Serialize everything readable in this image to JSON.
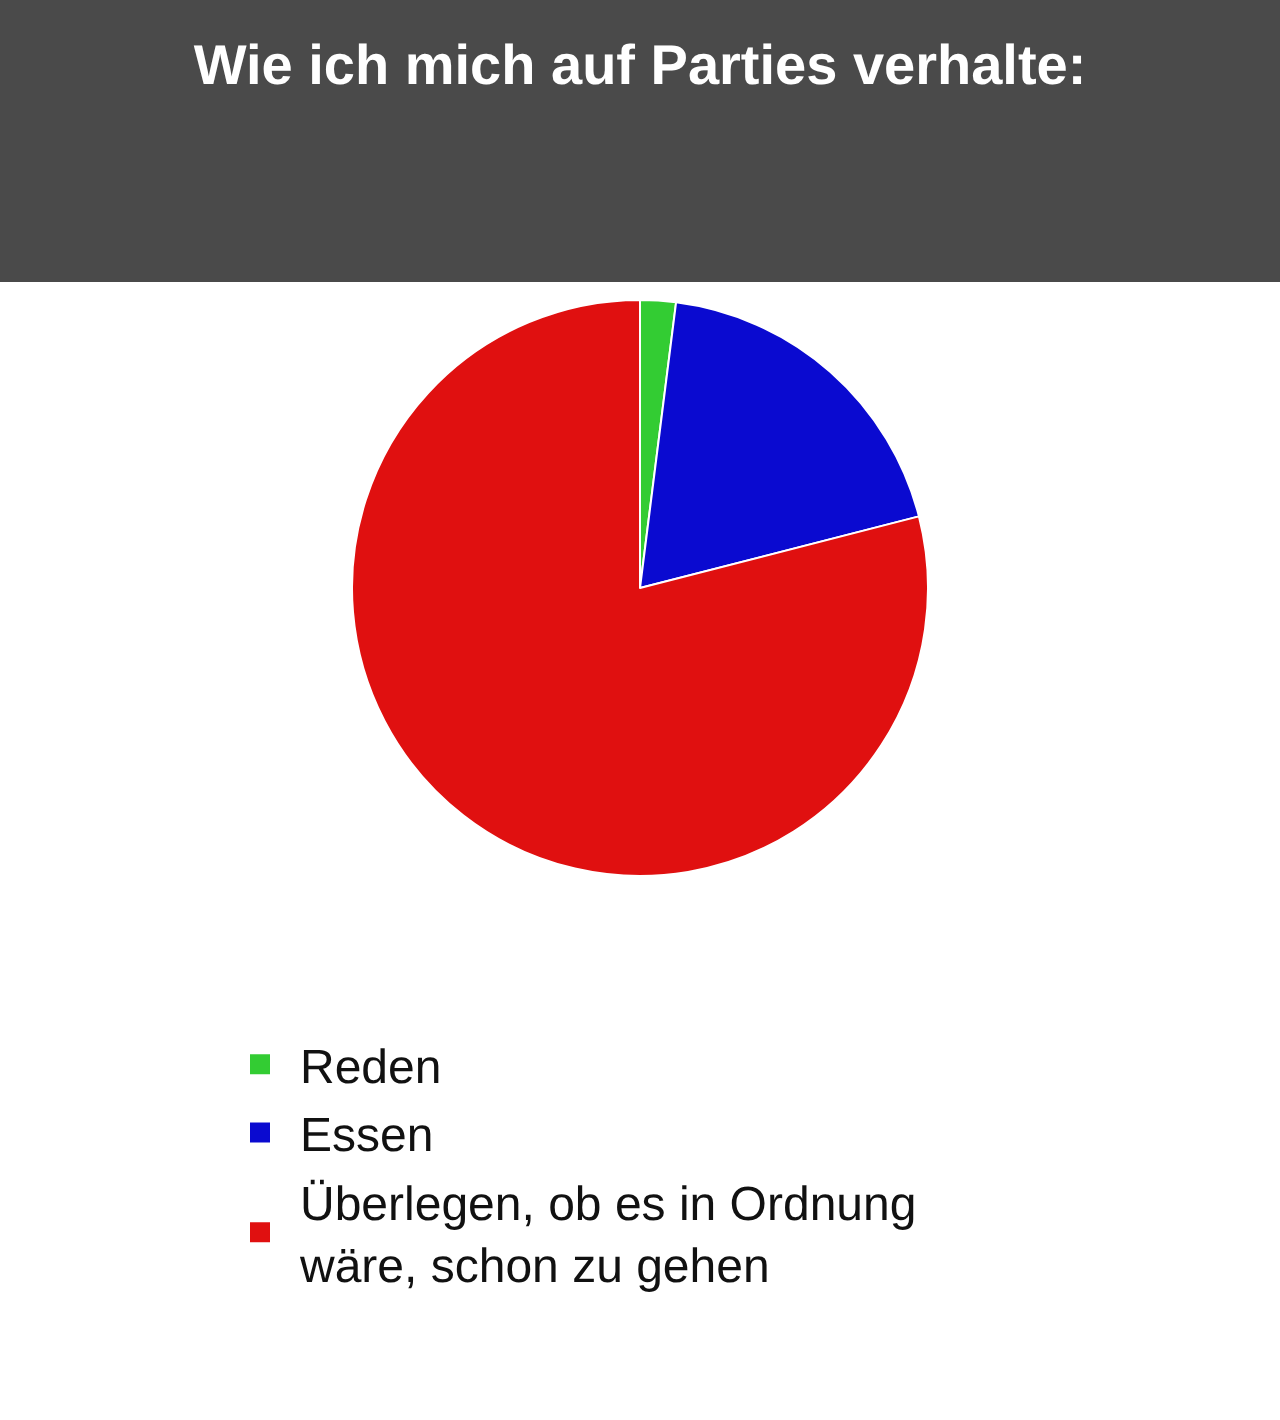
{
  "chart_data": {
    "type": "pie",
    "title": "Wie ich mich auf Parties verhalte:",
    "categories": [
      "Reden",
      "Essen",
      "Überlegen, ob es in Ordnung wäre, schon zu gehen"
    ],
    "values": [
      2,
      19,
      79
    ],
    "colors": [
      "#33cc33",
      "#0a0ad0",
      "#e01010"
    ],
    "legend": "bottom left"
  }
}
